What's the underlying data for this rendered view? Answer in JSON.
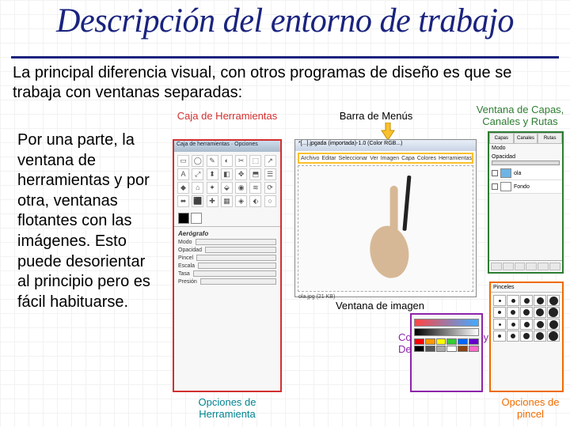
{
  "title": {
    "text": "Descripción del entorno de trabajo",
    "color": "#1a237e",
    "fontsize": 43
  },
  "intro": {
    "text": "La principal diferencia visual, con otros programas de diseño es que se trabaja con ventanas separadas:",
    "fontsize": 20
  },
  "left_paragraph": {
    "text": "Por una parte, la ventana de herramientas y por otra, ventanas flotantes con las imágenes. Esto puede desorientar al principio pero es fácil habituarse.",
    "fontsize": 20
  },
  "labels": {
    "toolbox": {
      "text": "Caja de Herramientas",
      "color": "#d32f2f",
      "fontsize": 13
    },
    "menubar": {
      "text": "Barra de Menús",
      "color": "#000000",
      "fontsize": 13
    },
    "layers": {
      "text": "Ventana de Capas, Canales y Rutas",
      "color": "#2e7d32",
      "fontsize": 13
    },
    "image_win": {
      "text": "Ventana de imagen",
      "color": "#000000",
      "fontsize": 13
    },
    "tool_opts": {
      "text": "Opciones de Herramienta",
      "color": "#00838f",
      "fontsize": 13
    },
    "colors": {
      "text": "Colores, Patrones y Degradados",
      "color": "#8e24aa",
      "fontsize": 13
    },
    "brush": {
      "text": "Opciones de pincel",
      "color": "#ef6c00",
      "fontsize": 13
    }
  },
  "toolbox": {
    "title": "Caja de herramientas · Opciones",
    "icons": [
      "▭",
      "◯",
      "✎",
      "◐",
      "✂",
      "⬚",
      "↗",
      "A",
      "⤢",
      "⬍",
      "◧",
      "✥",
      "⬒",
      "☰",
      "◆",
      "⌂",
      "✦",
      "⬙",
      "◉",
      "≋",
      "⟳",
      "⬌",
      "⬛",
      "✚",
      "▦",
      "◈",
      "⬖",
      "○"
    ],
    "opts_title": "Aerógrafo",
    "opts_rows": [
      "Modo",
      "Opacidad",
      "Pincel",
      "Escala",
      "Tasa",
      "Presión"
    ],
    "fg": "#000000",
    "bg": "#ffffff"
  },
  "image_window": {
    "title": "*[...].jpgada (importada)-1.0 (Color RGB...)",
    "menus": [
      "Archivo",
      "Editar",
      "Seleccionar",
      "Ver",
      "Imagen",
      "Capa",
      "Colores",
      "Herramientas",
      "Filtros",
      "Ventanas",
      "Ayuda"
    ],
    "status": "ola.jpg (21 KB)"
  },
  "layers": {
    "tabs": [
      "Capas",
      "Canales",
      "Rutas"
    ],
    "mode": "Modo",
    "opacity": "Opacidad",
    "items": [
      {
        "name": "ola",
        "bg": "#6db4e6"
      },
      {
        "name": "Fondo",
        "bg": "#ffffff"
      }
    ]
  },
  "colors_panel": {
    "palette": [
      "#ff0000",
      "#ff9900",
      "#ffff00",
      "#33cc33",
      "#0066ff",
      "#6600cc",
      "#000000",
      "#555555",
      "#aaaaaa",
      "#ffffff",
      "#8b4513",
      "#ff66cc"
    ]
  },
  "brush_panel": {
    "title": "Pinceles",
    "sizes": [
      3,
      5,
      7,
      9,
      11,
      4,
      6,
      8,
      10,
      12,
      3,
      5,
      7,
      9,
      11,
      4,
      6,
      8,
      10,
      12
    ]
  },
  "arrow_color": "#fbc02d"
}
